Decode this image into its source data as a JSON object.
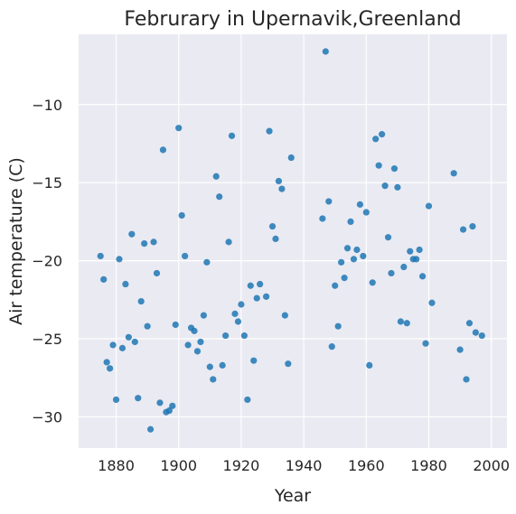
{
  "chart_data": {
    "type": "scatter",
    "title": "Februrary in Upernavik,Greenland",
    "xlabel": "Year",
    "ylabel": "Air temperature (C)",
    "xlim": [
      1868,
      2005
    ],
    "ylim": [
      -32,
      -5.5
    ],
    "xticks": [
      1880,
      1900,
      1920,
      1940,
      1960,
      1980,
      2000
    ],
    "yticks": [
      -30,
      -25,
      -20,
      -15,
      -10
    ],
    "ytick_labels": [
      "−30",
      "−25",
      "−20",
      "−15",
      "−10"
    ],
    "grid": true,
    "point_color": "#1f77b4",
    "background_color": "#eaeaf2",
    "points": [
      [
        1875,
        -19.7
      ],
      [
        1876,
        -21.2
      ],
      [
        1877,
        -26.5
      ],
      [
        1878,
        -26.9
      ],
      [
        1879,
        -25.4
      ],
      [
        1880,
        -28.9
      ],
      [
        1881,
        -19.9
      ],
      [
        1882,
        -25.6
      ],
      [
        1883,
        -21.5
      ],
      [
        1884,
        -24.9
      ],
      [
        1885,
        -18.3
      ],
      [
        1886,
        -25.2
      ],
      [
        1887,
        -28.8
      ],
      [
        1888,
        -22.6
      ],
      [
        1889,
        -18.9
      ],
      [
        1890,
        -24.2
      ],
      [
        1891,
        -30.8
      ],
      [
        1892,
        -18.8
      ],
      [
        1893,
        -20.8
      ],
      [
        1894,
        -29.1
      ],
      [
        1895,
        -12.9
      ],
      [
        1896,
        -29.7
      ],
      [
        1897,
        -29.6
      ],
      [
        1898,
        -29.3
      ],
      [
        1899,
        -24.1
      ],
      [
        1900,
        -11.5
      ],
      [
        1901,
        -17.1
      ],
      [
        1902,
        -19.7
      ],
      [
        1903,
        -25.4
      ],
      [
        1904,
        -24.3
      ],
      [
        1905,
        -24.5
      ],
      [
        1906,
        -25.8
      ],
      [
        1907,
        -25.2
      ],
      [
        1908,
        -23.5
      ],
      [
        1909,
        -20.1
      ],
      [
        1910,
        -26.8
      ],
      [
        1911,
        -27.6
      ],
      [
        1912,
        -14.6
      ],
      [
        1913,
        -15.9
      ],
      [
        1914,
        -26.7
      ],
      [
        1915,
        -24.8
      ],
      [
        1916,
        -18.8
      ],
      [
        1917,
        -12.0
      ],
      [
        1918,
        -23.4
      ],
      [
        1919,
        -23.9
      ],
      [
        1920,
        -22.8
      ],
      [
        1921,
        -24.8
      ],
      [
        1922,
        -28.9
      ],
      [
        1923,
        -21.6
      ],
      [
        1924,
        -26.4
      ],
      [
        1925,
        -22.4
      ],
      [
        1926,
        -21.5
      ],
      [
        1928,
        -22.3
      ],
      [
        1929,
        -11.7
      ],
      [
        1930,
        -17.8
      ],
      [
        1931,
        -18.6
      ],
      [
        1932,
        -14.9
      ],
      [
        1933,
        -15.4
      ],
      [
        1934,
        -23.5
      ],
      [
        1935,
        -26.6
      ],
      [
        1936,
        -13.4
      ],
      [
        1946,
        -17.3
      ],
      [
        1947,
        -6.6
      ],
      [
        1948,
        -16.2
      ],
      [
        1949,
        -25.5
      ],
      [
        1950,
        -21.6
      ],
      [
        1951,
        -24.2
      ],
      [
        1952,
        -20.1
      ],
      [
        1953,
        -21.1
      ],
      [
        1954,
        -19.2
      ],
      [
        1955,
        -17.5
      ],
      [
        1956,
        -19.9
      ],
      [
        1957,
        -19.3
      ],
      [
        1958,
        -16.4
      ],
      [
        1959,
        -19.7
      ],
      [
        1960,
        -16.9
      ],
      [
        1961,
        -26.7
      ],
      [
        1962,
        -21.4
      ],
      [
        1963,
        -12.2
      ],
      [
        1964,
        -13.9
      ],
      [
        1965,
        -11.9
      ],
      [
        1966,
        -15.2
      ],
      [
        1967,
        -18.5
      ],
      [
        1968,
        -20.8
      ],
      [
        1969,
        -14.1
      ],
      [
        1970,
        -15.3
      ],
      [
        1971,
        -23.9
      ],
      [
        1972,
        -20.4
      ],
      [
        1973,
        -24.0
      ],
      [
        1974,
        -19.4
      ],
      [
        1975,
        -19.9
      ],
      [
        1976,
        -19.9
      ],
      [
        1977,
        -19.3
      ],
      [
        1978,
        -21.0
      ],
      [
        1979,
        -25.3
      ],
      [
        1980,
        -16.5
      ],
      [
        1981,
        -22.7
      ],
      [
        1988,
        -14.4
      ],
      [
        1990,
        -25.7
      ],
      [
        1991,
        -18.0
      ],
      [
        1992,
        -27.6
      ],
      [
        1993,
        -24.0
      ],
      [
        1994,
        -17.8
      ],
      [
        1995,
        -24.6
      ],
      [
        1997,
        -24.8
      ]
    ]
  }
}
